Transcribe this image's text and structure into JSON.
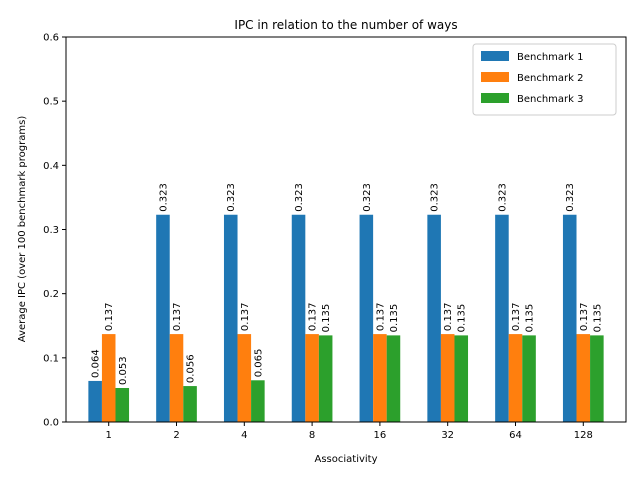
{
  "chart_data": {
    "type": "bar",
    "title": "IPC in relation to the number of ways",
    "xlabel": "Associativity",
    "ylabel": "Average IPC (over 100 benchmark programs)",
    "categories": [
      "1",
      "2",
      "4",
      "8",
      "16",
      "32",
      "64",
      "128"
    ],
    "ylim": [
      0,
      0.6
    ],
    "yticks": [
      "0.0",
      "0.1",
      "0.2",
      "0.3",
      "0.4",
      "0.5",
      "0.6"
    ],
    "grid": false,
    "legend_position": "top-right",
    "series": [
      {
        "name": "Benchmark 1",
        "color": "#1f77b4",
        "values": [
          0.064,
          0.323,
          0.323,
          0.323,
          0.323,
          0.323,
          0.323,
          0.323
        ],
        "labels": [
          "0.064",
          "0.323",
          "0.323",
          "0.323",
          "0.323",
          "0.323",
          "0.323",
          "0.323"
        ]
      },
      {
        "name": "Benchmark 2",
        "color": "#ff7f0e",
        "values": [
          0.137,
          0.137,
          0.137,
          0.137,
          0.137,
          0.137,
          0.137,
          0.137
        ],
        "labels": [
          "0.137",
          "0.137",
          "0.137",
          "0.137",
          "0.137",
          "0.137",
          "0.137",
          "0.137"
        ]
      },
      {
        "name": "Benchmark 3",
        "color": "#2ca02c",
        "values": [
          0.053,
          0.056,
          0.065,
          0.135,
          0.135,
          0.135,
          0.135,
          0.135
        ],
        "labels": [
          "0.053",
          "0.056",
          "0.065",
          "0.135",
          "0.135",
          "0.135",
          "0.135",
          "0.135"
        ]
      }
    ]
  }
}
